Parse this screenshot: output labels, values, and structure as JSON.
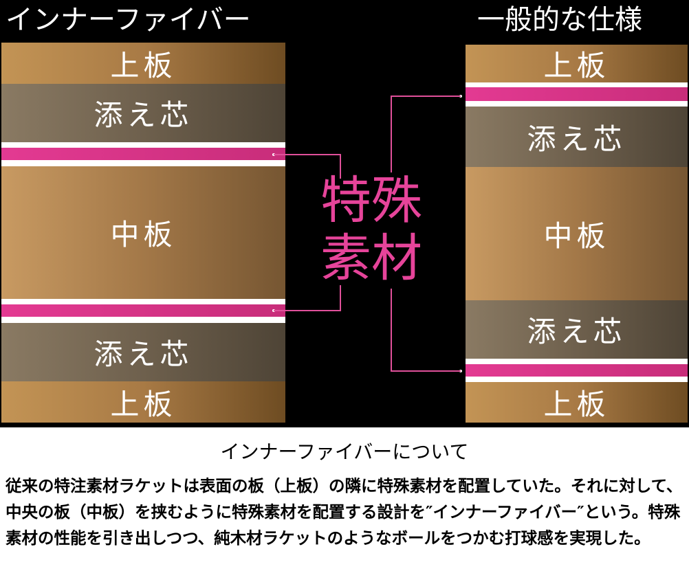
{
  "left": {
    "heading": "インナーファイバー",
    "layers": {
      "top": "上板",
      "core1": "添え芯",
      "middle": "中板",
      "core2": "添え芯",
      "bottom": "上板"
    }
  },
  "right": {
    "heading": "一般的な仕様",
    "layers": {
      "top": "上板",
      "core1": "添え芯",
      "middle": "中板",
      "core2": "添え芯",
      "bottom": "上板"
    }
  },
  "center_label": {
    "line1": "特殊",
    "line2": "素材"
  },
  "colors": {
    "special_material": "#e33a92",
    "background": "#000000"
  },
  "description": {
    "title": "インナーファイバーについて",
    "text": "従来の特注素材ラケットは表面の板（上板）の隣に特殊素材を配置していた。それに対して、中央の板（中板）を挟むように特殊素材を配置する設計を″インナーファイバー″という。特殊素材の性能を引き出しつつ、純木材ラケットのようなボールをつかむ打球感を実現した。"
  }
}
